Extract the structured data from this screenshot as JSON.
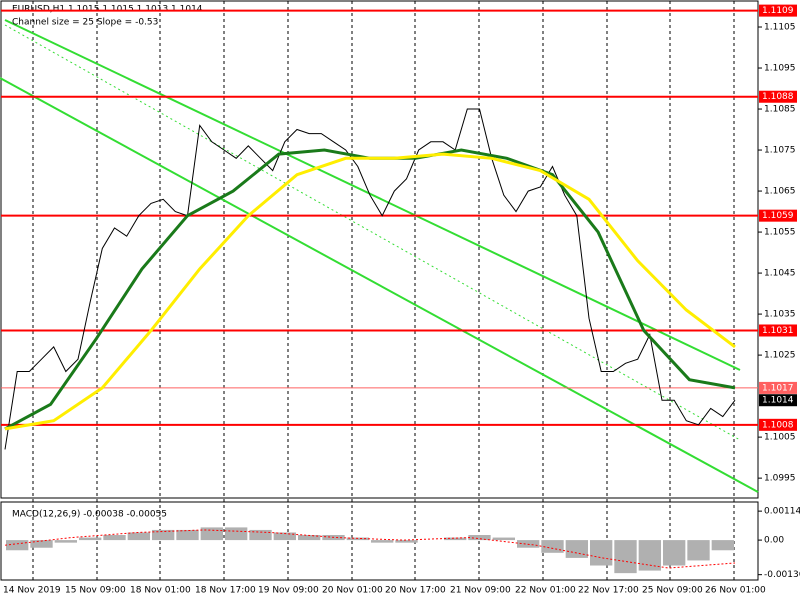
{
  "chart_data": {
    "type": "price-chart",
    "header": "EURUSD,H1  1.1015 1.1015 1.1013 1.1014",
    "subheader": "Channel size = 25 Slope = -0.53",
    "ylim": [
      1.09904,
      1.11111
    ],
    "yticks": [
      {
        "value": 1.1105,
        "label": "1.1105"
      },
      {
        "value": 1.1095,
        "label": "1.1095"
      },
      {
        "value": 1.1085,
        "label": "1.1085"
      },
      {
        "value": 1.1075,
        "label": "1.1075"
      },
      {
        "value": 1.1065,
        "label": "1.1065"
      },
      {
        "value": 1.1055,
        "label": "1.1055"
      },
      {
        "value": 1.1045,
        "label": "1.1045"
      },
      {
        "value": 1.1035,
        "label": "1.1035"
      },
      {
        "value": 1.1025,
        "label": "1.1025"
      },
      {
        "value": 1.1005,
        "label": "1.1005"
      },
      {
        "value": 1.0995,
        "label": "1.0995"
      }
    ],
    "levels": [
      {
        "value": 1.1109,
        "label": "1.1109",
        "color": "#ff0000"
      },
      {
        "value": 1.1088,
        "label": "1.1088",
        "color": "#ff0000"
      },
      {
        "value": 1.1059,
        "label": "1.1059",
        "color": "#ff0000"
      },
      {
        "value": 1.1031,
        "label": "1.1031",
        "color": "#ff0000"
      },
      {
        "value": 1.1017,
        "label": "1.1017",
        "color": "#ff6060"
      },
      {
        "value": 1.1008,
        "label": "1.1008",
        "color": "#ff0000"
      }
    ],
    "current_price": {
      "value": 1.1014,
      "label": "1.1014"
    },
    "xlabels": [
      "14 Nov 2019",
      "15 Nov 09:00",
      "18 Nov 01:00",
      "18 Nov 17:00",
      "19 Nov 09:00",
      "20 Nov 01:00",
      "20 Nov 17:00",
      "21 Nov 09:00",
      "22 Nov 01:00",
      "22 Nov 17:00",
      "25 Nov 09:00",
      "26 Nov 01:00"
    ],
    "series": [
      {
        "color": "#000000",
        "values": [
          1.1002,
          1.1021,
          1.1021,
          1.1024,
          1.1027,
          1.1021,
          1.1024,
          1.1038,
          1.1051,
          1.1056,
          1.1054,
          1.1059,
          1.1062,
          1.1063,
          1.106,
          1.1059,
          1.1081,
          1.1077,
          1.1075,
          1.1073,
          1.1076,
          1.1073,
          1.107,
          1.1077,
          1.108,
          1.1079,
          1.1079,
          1.1077,
          1.1075,
          1.1071,
          1.1064,
          1.1059,
          1.1065,
          1.1068,
          1.1075,
          1.1077,
          1.1077,
          1.1075,
          1.1085,
          1.1085,
          1.1073,
          1.1064,
          1.106,
          1.1065,
          1.1066,
          1.1071,
          1.1064,
          1.1059,
          1.1034,
          1.1021,
          1.1021,
          1.1023,
          1.1024,
          1.103,
          1.1014,
          1.1014,
          1.1009,
          1.1008,
          1.1012,
          1.101,
          1.1014
        ]
      },
      {
        "color": "#1a7a1a",
        "values": [
          1.1007,
          1.1013,
          1.1029,
          1.1046,
          1.1059,
          1.1065,
          1.1074,
          1.1075,
          1.1073,
          1.1073,
          1.1075,
          1.1073,
          1.1069,
          1.1055,
          1.1031,
          1.1019,
          1.1017
        ]
      },
      {
        "color": "#ffee00",
        "values": [
          1.1007,
          1.1009,
          1.1017,
          1.1031,
          1.1046,
          1.1059,
          1.1069,
          1.1073,
          1.1073,
          1.1074,
          1.1073,
          1.107,
          1.1063,
          1.1048,
          1.1036,
          1.1027
        ]
      }
    ],
    "macd": {
      "label": "MACD(12,26,9) -0.00038 -0.00055",
      "ylim": [
        -0.00157,
        0.00146
      ],
      "yticks": [
        {
          "value": 0.00114,
          "label": "0.00114"
        },
        {
          "value": 0,
          "label": "0.00"
        },
        {
          "value": -0.00136,
          "label": "-0.00136"
        }
      ],
      "histogram": [
        -0.0004,
        -0.0003,
        -0.0001,
        0.0001,
        0.0002,
        0.0003,
        0.0004,
        0.0004,
        0.0005,
        0.0005,
        0.0004,
        0.0003,
        0.0002,
        0.0002,
        0.0001,
        -0.0001,
        -0.0001,
        0,
        0.0001,
        0.0002,
        0.0001,
        -0.0003,
        -0.0005,
        -0.0007,
        -0.001,
        -0.0013,
        -0.0012,
        -0.001,
        -0.0008,
        -0.0004
      ],
      "signal": [
        -0.0002,
        0.0001,
        0.0003,
        0.0004,
        0.0003,
        0.0001,
        0,
        0.0001,
        -0.0002,
        -0.0007,
        -0.0011,
        -0.0009
      ]
    }
  }
}
